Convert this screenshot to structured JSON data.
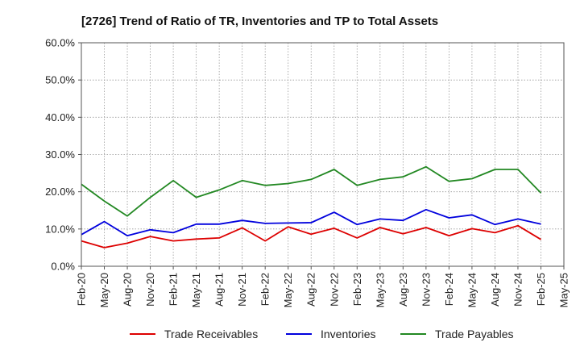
{
  "chart_data": {
    "type": "line",
    "title": "[2726]  Trend of Ratio of TR, Inventories and TP to Total Assets",
    "xlabel": "",
    "ylabel": "",
    "ylim": [
      0,
      60
    ],
    "yticks": [
      "0.0%",
      "10.0%",
      "20.0%",
      "30.0%",
      "40.0%",
      "50.0%",
      "60.0%"
    ],
    "ytick_values": [
      0,
      10,
      20,
      30,
      40,
      50,
      60
    ],
    "x": [
      "Feb-20",
      "May-20",
      "Aug-20",
      "Nov-20",
      "Feb-21",
      "May-21",
      "Aug-21",
      "Nov-21",
      "Feb-22",
      "May-22",
      "Aug-22",
      "Nov-22",
      "Feb-23",
      "May-23",
      "Aug-23",
      "Nov-23",
      "Feb-24",
      "May-24",
      "Aug-24",
      "Nov-24",
      "Feb-25",
      "May-25"
    ],
    "xticks": [
      "Feb-20",
      "May-20",
      "Aug-20",
      "Nov-20",
      "Feb-21",
      "May-21",
      "Aug-21",
      "Nov-21",
      "Feb-22",
      "May-22",
      "Aug-22",
      "Nov-22",
      "Feb-23",
      "May-23",
      "Aug-23",
      "Nov-23",
      "Feb-24",
      "May-24",
      "Aug-24",
      "Nov-24",
      "Feb-25",
      "May-25"
    ],
    "grid": true,
    "legend_position": "bottom",
    "series": [
      {
        "name": "Trade Receivables",
        "color": "#dd0000",
        "values": [
          6.8,
          5.0,
          6.2,
          8.0,
          6.8,
          7.3,
          7.6,
          10.3,
          6.8,
          10.6,
          8.6,
          10.2,
          7.6,
          10.4,
          8.7,
          10.4,
          8.2,
          10.1,
          9.0,
          10.9,
          7.2,
          null
        ]
      },
      {
        "name": "Inventories",
        "color": "#0000dd",
        "values": [
          8.5,
          12.0,
          8.2,
          9.8,
          9.0,
          11.3,
          11.3,
          12.3,
          11.5,
          11.6,
          11.7,
          14.5,
          11.2,
          12.7,
          12.3,
          15.2,
          13.0,
          13.8,
          11.2,
          12.7,
          11.3,
          null
        ]
      },
      {
        "name": "Trade Payables",
        "color": "#228822",
        "values": [
          22.0,
          17.5,
          13.5,
          18.5,
          23.0,
          18.5,
          20.5,
          23.0,
          21.7,
          22.2,
          23.3,
          26.0,
          21.7,
          23.3,
          24.0,
          26.7,
          22.8,
          23.5,
          26.0,
          26.0,
          19.7,
          null
        ]
      }
    ]
  }
}
